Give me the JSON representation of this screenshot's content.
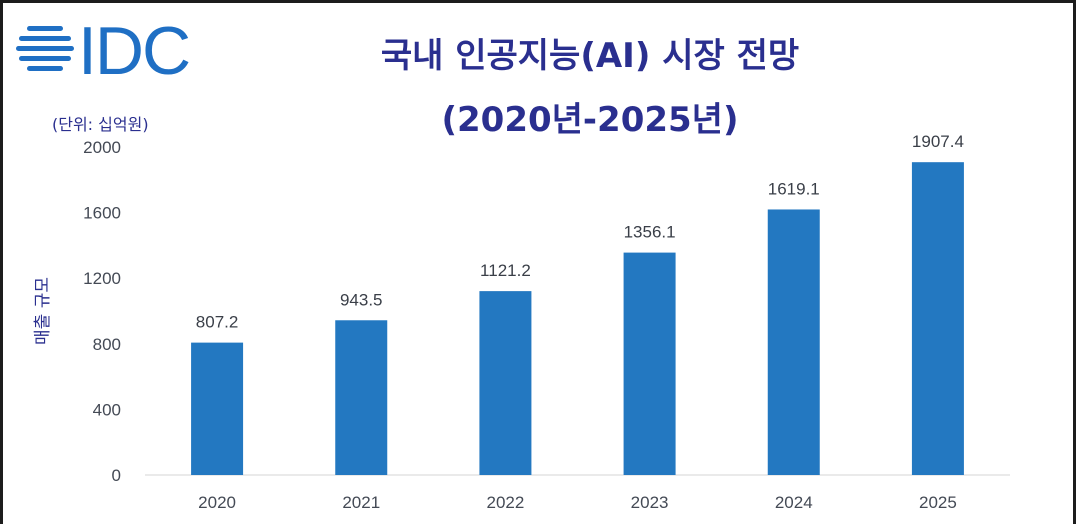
{
  "brand": {
    "logo_text": "IDC",
    "colors": {
      "logo": "#1f6fc4",
      "title": "#2a2f8f",
      "bar": "#2378c1"
    }
  },
  "chart_data": {
    "type": "bar",
    "title": "국내 인공지능(AI) 시장 전망",
    "subtitle": "(2020년-2025년)",
    "unit_label": "(단위: 십억원)",
    "xlabel": "",
    "ylabel": "매출 규모",
    "categories": [
      "2020",
      "2021",
      "2022",
      "2023",
      "2024",
      "2025"
    ],
    "values": [
      807.2,
      943.5,
      1121.2,
      1356.1,
      1619.1,
      1907.4
    ],
    "value_labels": [
      "807.2",
      "943.5",
      "1121.2",
      "1356.1",
      "1619.1",
      "1907.4"
    ],
    "y_ticks": [
      "0",
      "400",
      "800",
      "1200",
      "1600",
      "2000"
    ],
    "ylim": [
      0,
      2000
    ],
    "grid": false,
    "legend": "none"
  }
}
